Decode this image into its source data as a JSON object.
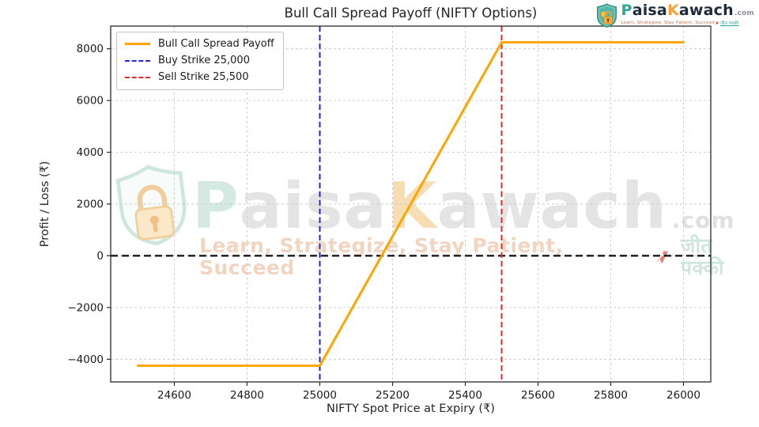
{
  "chart_data": {
    "type": "line",
    "title": "Bull Call Spread Payoff (NIFTY Options)",
    "xlabel": "NIFTY Spot Price at Expiry (₹)",
    "ylabel": "Profit / Loss (₹)",
    "xlim": [
      24425,
      26075
    ],
    "ylim": [
      -4875,
      8875
    ],
    "x_ticks": [
      24600,
      24800,
      25000,
      25200,
      25400,
      25600,
      25800,
      26000
    ],
    "y_ticks": [
      -4000,
      -2000,
      0,
      2000,
      4000,
      6000,
      8000
    ],
    "grid": true,
    "legend_position": "upper left",
    "series": [
      {
        "name": "Bull Call Spread Payoff",
        "color": "#FFA500",
        "style": "solid",
        "x": [
          24500,
          25000,
          25170,
          25500,
          26000
        ],
        "y": [
          -4250,
          -4250,
          0,
          8250,
          8250
        ]
      }
    ],
    "vlines": [
      {
        "name": "Buy Strike 25,000",
        "x": 25000,
        "color": "#2626d8",
        "style": "dashed"
      },
      {
        "name": "Sell Strike 25,500",
        "x": 25500,
        "color": "#e12b2b",
        "style": "dashed"
      }
    ],
    "hlines": [
      {
        "name": "zero-profit-line",
        "y": 0,
        "color": "#000000",
        "style": "dashed"
      }
    ],
    "legend": {
      "entries": [
        {
          "label": "Bull Call Spread Payoff",
          "color": "#FFA500",
          "dash": "solid"
        },
        {
          "label": "Buy Strike 25,000",
          "color": "#2626d8",
          "dash": "dashed"
        },
        {
          "label": "Sell Strike 25,500",
          "color": "#e12b2b",
          "dash": "dashed"
        }
      ]
    }
  },
  "watermark": {
    "p": "P",
    "aisa": "aisa",
    "k": "K",
    "awach": "awach",
    "com": ".com",
    "tagline_en": "Learn, Strategize, Stay Patient, Succeed",
    "tagline_hi": "जीत पक्की"
  },
  "logo": {
    "p": "P",
    "aisa": "aisa",
    "k": "K",
    "awach": "awach",
    "com": ".com",
    "tagline_en": "Learn, Strategize, Stay Patient, Succeed",
    "tagline_hi": "जीत पक्की"
  }
}
